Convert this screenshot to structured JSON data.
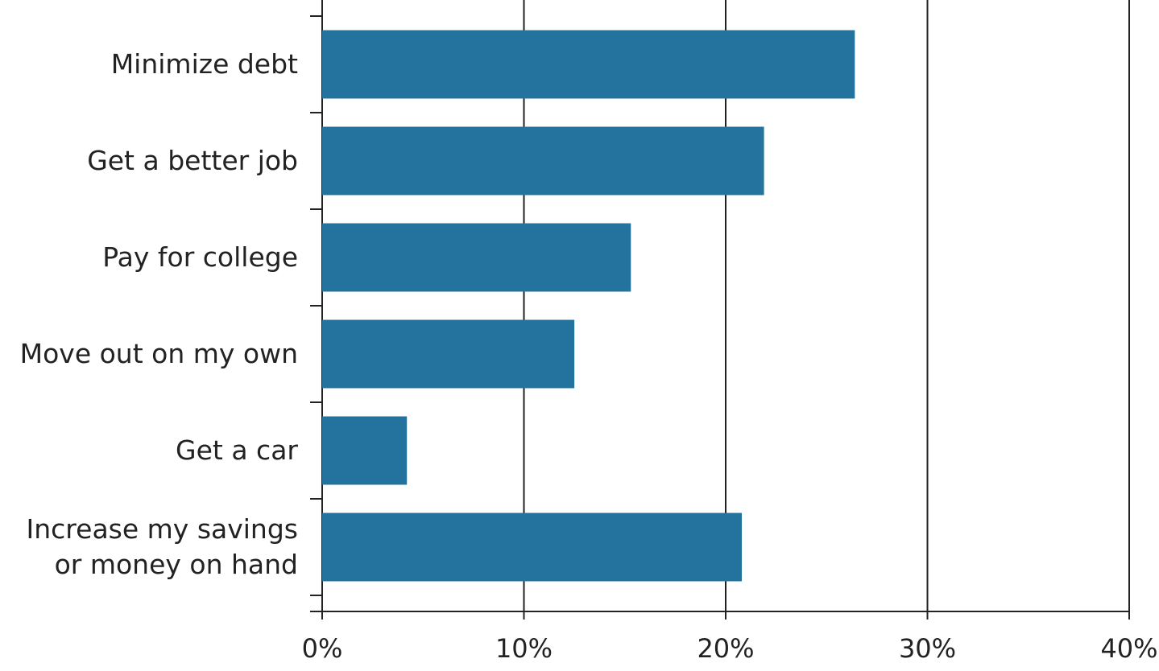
{
  "chart_data": {
    "type": "bar",
    "orientation": "horizontal",
    "categories": [
      "Minimize debt",
      "Get a better job",
      "Pay for college",
      "Move out on my own",
      "Get a car",
      "Increase my savings or money on hand"
    ],
    "values": [
      26.4,
      21.9,
      15.3,
      12.5,
      4.2,
      20.8
    ],
    "color": "#24739e",
    "xlim": [
      0,
      40
    ],
    "xticks": [
      {
        "value": 0,
        "label": "0%"
      },
      {
        "value": 10,
        "label": "10%"
      },
      {
        "value": 20,
        "label": "20%"
      },
      {
        "value": 30,
        "label": "30%"
      },
      {
        "value": 40,
        "label": "40%"
      }
    ],
    "grid": true
  }
}
